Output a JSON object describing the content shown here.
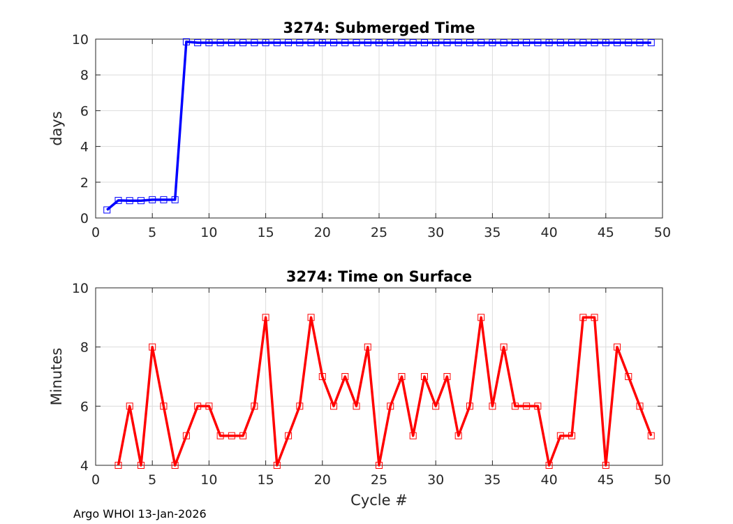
{
  "chart_data": [
    {
      "type": "line",
      "title": "3274: Submerged Time",
      "xlabel": "",
      "ylabel": "days",
      "xlim": [
        0,
        50
      ],
      "ylim": [
        0,
        10
      ],
      "xticks": [
        0,
        5,
        10,
        15,
        20,
        25,
        30,
        35,
        40,
        45,
        50
      ],
      "yticks": [
        0,
        2,
        4,
        6,
        8,
        10
      ],
      "grid": true,
      "color": "#0000ff",
      "marker": "square",
      "x": [
        1,
        2,
        3,
        4,
        5,
        6,
        7,
        8,
        9,
        10,
        11,
        12,
        13,
        14,
        15,
        16,
        17,
        18,
        19,
        20,
        21,
        22,
        23,
        24,
        25,
        26,
        27,
        28,
        29,
        30,
        31,
        32,
        33,
        34,
        35,
        36,
        37,
        38,
        39,
        40,
        41,
        42,
        43,
        44,
        45,
        46,
        47,
        48,
        49
      ],
      "y": [
        0.45,
        0.98,
        0.97,
        0.97,
        1.02,
        1.02,
        1.02,
        9.85,
        9.8,
        9.8,
        9.8,
        9.8,
        9.8,
        9.8,
        9.8,
        9.8,
        9.8,
        9.8,
        9.8,
        9.8,
        9.8,
        9.8,
        9.8,
        9.8,
        9.8,
        9.8,
        9.8,
        9.8,
        9.8,
        9.8,
        9.8,
        9.8,
        9.8,
        9.8,
        9.8,
        9.8,
        9.8,
        9.8,
        9.8,
        9.8,
        9.8,
        9.8,
        9.8,
        9.8,
        9.8,
        9.8,
        9.8,
        9.8,
        9.8
      ]
    },
    {
      "type": "line",
      "title": "3274: Time on Surface",
      "xlabel": "Cycle #",
      "ylabel": "Minutes",
      "xlim": [
        0,
        50
      ],
      "ylim": [
        4,
        10
      ],
      "xticks": [
        0,
        5,
        10,
        15,
        20,
        25,
        30,
        35,
        40,
        45,
        50
      ],
      "yticks": [
        4,
        6,
        8,
        10
      ],
      "grid": true,
      "color": "#ff0000",
      "marker": "square",
      "x": [
        2,
        3,
        4,
        5,
        6,
        7,
        8,
        9,
        10,
        11,
        12,
        13,
        14,
        15,
        16,
        17,
        18,
        19,
        20,
        21,
        22,
        23,
        24,
        25,
        26,
        27,
        28,
        29,
        30,
        31,
        32,
        33,
        34,
        35,
        36,
        37,
        38,
        39,
        40,
        41,
        42,
        43,
        44,
        45,
        46,
        47,
        48,
        49
      ],
      "y": [
        4,
        6,
        4,
        8,
        6,
        4,
        5,
        6,
        6,
        5,
        5,
        5,
        6,
        9,
        4,
        5,
        6,
        9,
        7,
        6,
        7,
        6,
        8,
        4,
        6,
        7,
        5,
        7,
        6,
        7,
        5,
        6,
        9,
        6,
        8,
        6,
        6,
        6,
        4,
        5,
        5,
        9,
        9,
        4,
        8,
        7,
        6,
        5
      ]
    }
  ],
  "footer": "Argo WHOI 13-Jan-2026"
}
